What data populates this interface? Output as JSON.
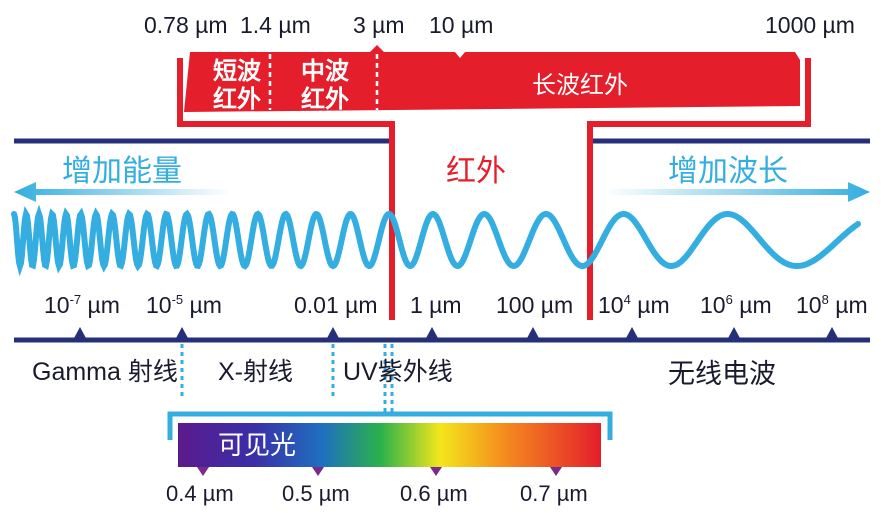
{
  "ir_bands": {
    "boundaries": [
      "0.78 µm",
      "1.4 µm",
      "3 µm",
      "10 µm",
      "1000 µm"
    ],
    "short_wave": [
      "短波",
      "红外"
    ],
    "mid_wave": [
      "中波",
      "红外"
    ],
    "long_wave": "长波红外"
  },
  "spectrum": {
    "energy_label": "增加能量",
    "infrared_label": "红外",
    "wavelength_label": "增加波长",
    "ticks": [
      {
        "base": "10",
        "exp": "-7",
        "unit": " µm"
      },
      {
        "base": "10",
        "exp": "-5",
        "unit": " µm"
      },
      {
        "base": "0.01 µm",
        "exp": "",
        "unit": ""
      },
      {
        "base": "1 µm",
        "exp": "",
        "unit": ""
      },
      {
        "base": "100 µm",
        "exp": "",
        "unit": ""
      },
      {
        "base": "10",
        "exp": "4",
        "unit": " µm"
      },
      {
        "base": "10",
        "exp": "6",
        "unit": " µm"
      },
      {
        "base": "10",
        "exp": "8",
        "unit": " µm"
      }
    ],
    "regions": [
      "Gamma 射线",
      "X-射线",
      "UV紫外线",
      "无线电波"
    ]
  },
  "visible": {
    "label": "可见光",
    "ticks": [
      "0.4 µm",
      "0.5 µm",
      "0.6 µm",
      "0.7 µm"
    ]
  },
  "colors": {
    "navy": "#26307a",
    "red": "#e41e2b",
    "blue": "#34aee0"
  }
}
